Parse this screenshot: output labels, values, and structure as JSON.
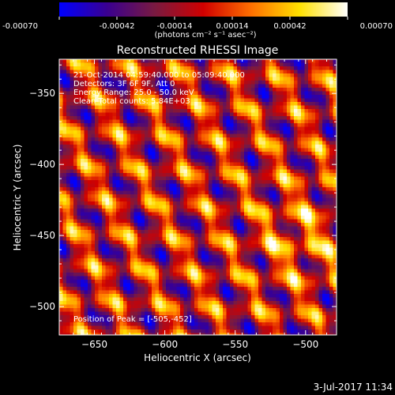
{
  "colorbar": {
    "ticks": [
      "-0.00070",
      "-0.00042",
      "-0.00014",
      "0.00014",
      "0.00042",
      "0.00070"
    ],
    "tick_values": [
      -0.0007,
      -0.00042,
      -0.00014,
      0.00014,
      0.00042,
      0.0007
    ],
    "range": [
      -0.0007,
      0.0007
    ],
    "units_label": "(photons cm⁻² s⁻¹ asec⁻²)",
    "stops": [
      "#0000ff",
      "#3a0090",
      "#7a1a40",
      "#d00000",
      "#ff7000",
      "#ffe000",
      "#ffffff"
    ]
  },
  "chart_data": {
    "type": "heatmap",
    "title": "Reconstructed RHESSI Image",
    "xlabel": "Heliocentric X (arcsec)",
    "ylabel": "Heliocentric Y (arcsec)",
    "xlim": [
      -675,
      -478
    ],
    "ylim": [
      -520,
      -326
    ],
    "xticks": [
      -650,
      -600,
      -550,
      -500
    ],
    "yticks": [
      -350,
      -400,
      -450,
      -500
    ],
    "xtick_labels": [
      "−650",
      "−600",
      "−550",
      "−500"
    ],
    "ytick_labels": [
      "−350",
      "−400",
      "−450",
      "−500"
    ],
    "annotations": [
      "21-Oct-2014 04:59:40.000 to 05:09:40.000",
      "Detectors: 3F 6F 9F, Att 0",
      "Energy Range: 25.0 - 50.0 keV",
      "Clean    Total counts: 5.84E+03"
    ],
    "peak_text": "Position of Peak = [-505,-452]",
    "peak": [
      -505,
      -452
    ],
    "pattern": {
      "period_x_arcsec": 34,
      "period_y_arcsec": 38
    }
  },
  "footer": {
    "date": "3-Jul-2017 11:34"
  }
}
